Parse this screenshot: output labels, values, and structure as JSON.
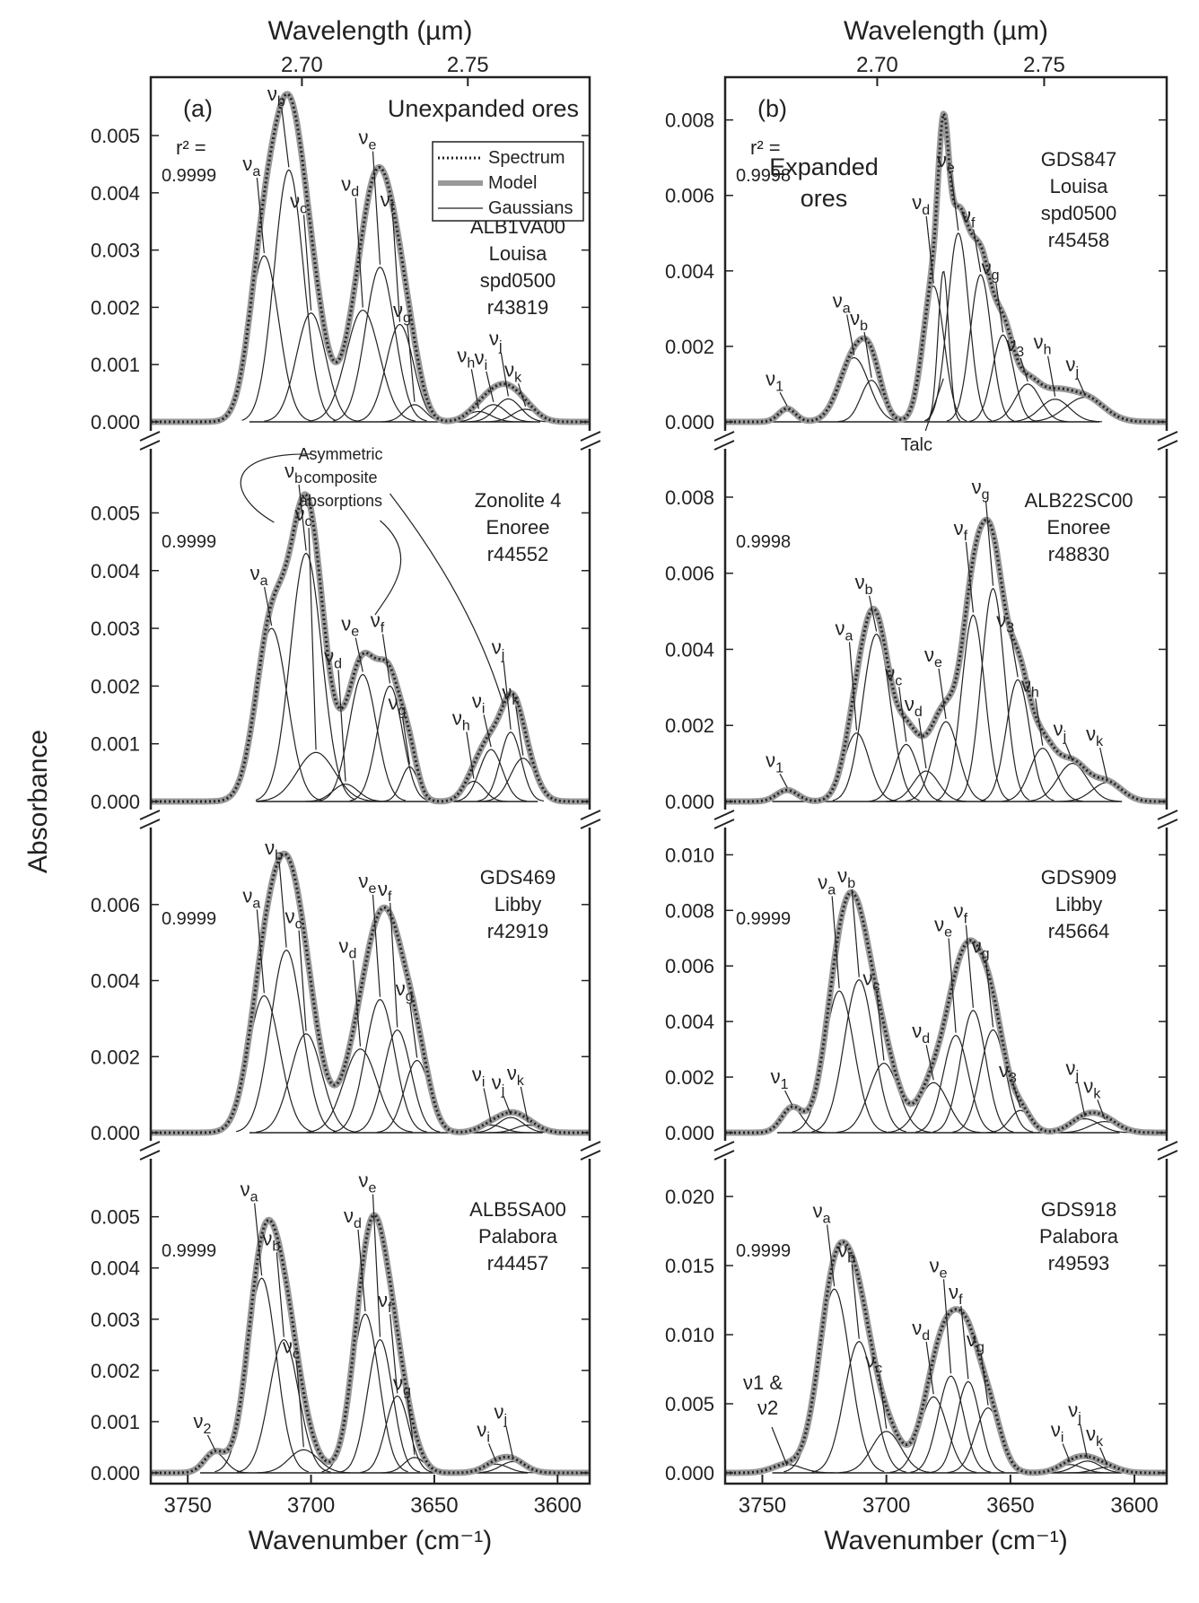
{
  "figure": {
    "top_label": "Wavelength (µm)",
    "x_label": "Wavenumber (cm⁻¹)",
    "y_label": "Absorbance",
    "wavelength_ticks": [
      "2.70",
      "2.75"
    ],
    "wavelength_tick_values_cm": [
      3703.7,
      3636.4
    ],
    "x_ticks": [
      "3750",
      "3700",
      "3650",
      "3600"
    ],
    "legend": [
      "Spectrum",
      "Model",
      "Gaussians"
    ]
  },
  "chart_data": [
    {
      "type": "line",
      "panel": "a",
      "panel_label": "(a)",
      "heading": "Unexpanded ores",
      "sample": [
        "ALB1VA00",
        "Louisa",
        "spd0500",
        "r43819"
      ],
      "r2_label": "r² =",
      "r2": "0.9999",
      "xlim": [
        3765,
        3587
      ],
      "ylim": [
        0,
        0.0058
      ],
      "yticks": [
        "0.000",
        "0.001",
        "0.002",
        "0.003",
        "0.004",
        "0.005"
      ],
      "ytick_values": [
        0,
        0.001,
        0.002,
        0.003,
        0.004,
        0.005
      ],
      "gaussians": [
        {
          "name": "νa",
          "center": 3719,
          "amp": 0.0029,
          "fwhm": 14
        },
        {
          "name": "νb",
          "center": 3709,
          "amp": 0.0044,
          "fwhm": 14
        },
        {
          "name": "νc",
          "center": 3700,
          "amp": 0.0019,
          "fwhm": 14
        },
        {
          "name": "νd",
          "center": 3679,
          "amp": 0.00195,
          "fwhm": 16
        },
        {
          "name": "νe",
          "center": 3672,
          "amp": 0.0027,
          "fwhm": 14
        },
        {
          "name": "νf",
          "center": 3664,
          "amp": 0.0017,
          "fwhm": 13
        },
        {
          "name": "νg",
          "center": 3658,
          "amp": 0.0003,
          "fwhm": 10
        },
        {
          "name": "νh",
          "center": 3632,
          "amp": 0.00018,
          "fwhm": 12
        },
        {
          "name": "νi",
          "center": 3626,
          "amp": 0.0003,
          "fwhm": 12
        },
        {
          "name": "νj",
          "center": 3620,
          "amp": 0.0004,
          "fwhm": 12
        },
        {
          "name": "νk",
          "center": 3613,
          "amp": 0.00022,
          "fwhm": 12
        }
      ]
    },
    {
      "type": "line",
      "panel": "a",
      "panel_label": "",
      "heading": "",
      "sample": [
        "Zonolite 4",
        "Enoree",
        "r44552"
      ],
      "r2_label": "",
      "r2": "0.9999",
      "annotation": "Asymmetric composite absorptions",
      "xlim": [
        3765,
        3587
      ],
      "ylim": [
        0,
        0.0058
      ],
      "yticks": [
        "0.000",
        "0.001",
        "0.002",
        "0.003",
        "0.004",
        "0.005"
      ],
      "ytick_values": [
        0,
        0.001,
        0.002,
        0.003,
        0.004,
        0.005
      ],
      "gaussians": [
        {
          "name": "νa",
          "center": 3716,
          "amp": 0.003,
          "fwhm": 15
        },
        {
          "name": "νb",
          "center": 3702,
          "amp": 0.0043,
          "fwhm": 15
        },
        {
          "name": "νc",
          "center": 3698,
          "amp": 0.00085,
          "fwhm": 18
        },
        {
          "name": "νd",
          "center": 3686,
          "amp": 0.0003,
          "fwhm": 12
        },
        {
          "name": "νe",
          "center": 3679,
          "amp": 0.0022,
          "fwhm": 13
        },
        {
          "name": "νf",
          "center": 3668,
          "amp": 0.002,
          "fwhm": 12
        },
        {
          "name": "νg",
          "center": 3660,
          "amp": 0.0006,
          "fwhm": 8
        },
        {
          "name": "νh",
          "center": 3634,
          "amp": 0.00035,
          "fwhm": 10
        },
        {
          "name": "νi",
          "center": 3627,
          "amp": 0.0009,
          "fwhm": 11
        },
        {
          "name": "νj",
          "center": 3619,
          "amp": 0.0012,
          "fwhm": 10
        },
        {
          "name": "νk",
          "center": 3614,
          "amp": 0.00075,
          "fwhm": 12
        }
      ]
    },
    {
      "type": "line",
      "panel": "a",
      "panel_label": "",
      "heading": "",
      "sample": [
        "GDS469",
        "Libby",
        "r42919"
      ],
      "r2_label": "",
      "r2": "0.9999",
      "xlim": [
        3765,
        3587
      ],
      "ylim": [
        0,
        0.0076
      ],
      "yticks": [
        "0.000",
        "0.002",
        "0.004",
        "0.006"
      ],
      "ytick_values": [
        0,
        0.002,
        0.004,
        0.006
      ],
      "gaussians": [
        {
          "name": "νa",
          "center": 3719,
          "amp": 0.0036,
          "fwhm": 15
        },
        {
          "name": "νb",
          "center": 3710,
          "amp": 0.0048,
          "fwhm": 15
        },
        {
          "name": "νc",
          "center": 3702,
          "amp": 0.0026,
          "fwhm": 15
        },
        {
          "name": "νd",
          "center": 3680,
          "amp": 0.0022,
          "fwhm": 16
        },
        {
          "name": "νe",
          "center": 3672,
          "amp": 0.0035,
          "fwhm": 14
        },
        {
          "name": "νf",
          "center": 3665,
          "amp": 0.0027,
          "fwhm": 13
        },
        {
          "name": "νg",
          "center": 3657,
          "amp": 0.0019,
          "fwhm": 12
        },
        {
          "name": "νi",
          "center": 3627,
          "amp": 0.0002,
          "fwhm": 12
        },
        {
          "name": "νj",
          "center": 3619,
          "amp": 0.0004,
          "fwhm": 12
        },
        {
          "name": "νk",
          "center": 3612,
          "amp": 0.0002,
          "fwhm": 12
        }
      ]
    },
    {
      "type": "line",
      "panel": "a",
      "panel_label": "",
      "heading": "",
      "sample": [
        "ALB5SA00",
        "Palabora",
        "r44457"
      ],
      "r2_label": "",
      "r2": "0.9999",
      "xlim": [
        3765,
        3587
      ],
      "ylim": [
        0,
        0.0058
      ],
      "yticks": [
        "0.000",
        "0.001",
        "0.002",
        "0.003",
        "0.004",
        "0.005"
      ],
      "ytick_values": [
        0,
        0.001,
        0.002,
        0.003,
        0.004,
        0.005
      ],
      "gaussians": [
        {
          "name": "ν2",
          "center": 3739,
          "amp": 0.0004,
          "fwhm": 10
        },
        {
          "name": "νa",
          "center": 3720,
          "amp": 0.0038,
          "fwhm": 14
        },
        {
          "name": "νb",
          "center": 3711,
          "amp": 0.0026,
          "fwhm": 14
        },
        {
          "name": "νc",
          "center": 3703,
          "amp": 0.00045,
          "fwhm": 14
        },
        {
          "name": "νd",
          "center": 3678,
          "amp": 0.0031,
          "fwhm": 13
        },
        {
          "name": "νe",
          "center": 3672,
          "amp": 0.0026,
          "fwhm": 12
        },
        {
          "name": "νf",
          "center": 3665,
          "amp": 0.0015,
          "fwhm": 11
        },
        {
          "name": "νg",
          "center": 3658,
          "amp": 0.0003,
          "fwhm": 10
        },
        {
          "name": "νi",
          "center": 3625,
          "amp": 0.00017,
          "fwhm": 12
        },
        {
          "name": "νj",
          "center": 3618,
          "amp": 0.00022,
          "fwhm": 12
        }
      ]
    },
    {
      "type": "line",
      "panel": "b",
      "panel_label": "(b)",
      "heading": "Expanded ores",
      "sample": [
        "GDS847",
        "Louisa",
        "spd0500",
        "r45458"
      ],
      "r2_label": "r² =",
      "r2": "0.9998",
      "annotation": "Talc",
      "xlim": [
        3765,
        3587
      ],
      "ylim": [
        0,
        0.0088
      ],
      "yticks": [
        "0.000",
        "0.002",
        "0.004",
        "0.006",
        "0.008"
      ],
      "ytick_values": [
        0,
        0.002,
        0.004,
        0.006,
        0.008
      ],
      "gaussians": [
        {
          "name": "ν1",
          "center": 3740,
          "amp": 0.00035,
          "fwhm": 8
        },
        {
          "name": "νa",
          "center": 3713,
          "amp": 0.0017,
          "fwhm": 14
        },
        {
          "name": "νb",
          "center": 3706,
          "amp": 0.0011,
          "fwhm": 10
        },
        {
          "name": "νd",
          "center": 3681,
          "amp": 0.0036,
          "fwhm": 10
        },
        {
          "name": "talc",
          "center": 3677,
          "amp": 0.004,
          "fwhm": 5
        },
        {
          "name": "νe",
          "center": 3671,
          "amp": 0.005,
          "fwhm": 10
        },
        {
          "name": "νf",
          "center": 3662,
          "amp": 0.0039,
          "fwhm": 10
        },
        {
          "name": "νg",
          "center": 3653,
          "amp": 0.0023,
          "fwhm": 10
        },
        {
          "name": "ν3",
          "center": 3643,
          "amp": 0.001,
          "fwhm": 12
        },
        {
          "name": "νh",
          "center": 3632,
          "amp": 0.0006,
          "fwhm": 14
        },
        {
          "name": "νj",
          "center": 3620,
          "amp": 0.00065,
          "fwhm": 18
        }
      ]
    },
    {
      "type": "line",
      "panel": "b",
      "panel_label": "",
      "heading": "",
      "sample": [
        "ALB22SC00",
        "Enoree",
        "r48830"
      ],
      "r2_label": "",
      "r2": "0.9998",
      "xlim": [
        3765,
        3587
      ],
      "ylim": [
        0,
        0.0088
      ],
      "yticks": [
        "0.000",
        "0.002",
        "0.004",
        "0.006",
        "0.008"
      ],
      "ytick_values": [
        0,
        0.002,
        0.004,
        0.006,
        0.008
      ],
      "gaussians": [
        {
          "name": "ν1",
          "center": 3740,
          "amp": 0.0003,
          "fwhm": 10
        },
        {
          "name": "νa",
          "center": 3712,
          "amp": 0.0018,
          "fwhm": 12
        },
        {
          "name": "νb",
          "center": 3704,
          "amp": 0.0044,
          "fwhm": 13
        },
        {
          "name": "νc",
          "center": 3692,
          "amp": 0.0015,
          "fwhm": 11
        },
        {
          "name": "νd",
          "center": 3684,
          "amp": 0.0008,
          "fwhm": 12
        },
        {
          "name": "νe",
          "center": 3676,
          "amp": 0.0021,
          "fwhm": 12
        },
        {
          "name": "νf",
          "center": 3665,
          "amp": 0.0049,
          "fwhm": 11
        },
        {
          "name": "νg",
          "center": 3657,
          "amp": 0.0056,
          "fwhm": 11
        },
        {
          "name": "ν3",
          "center": 3647,
          "amp": 0.0032,
          "fwhm": 11
        },
        {
          "name": "νh",
          "center": 3637,
          "amp": 0.0014,
          "fwhm": 12
        },
        {
          "name": "νj",
          "center": 3625,
          "amp": 0.001,
          "fwhm": 14
        },
        {
          "name": "νk",
          "center": 3611,
          "amp": 0.0005,
          "fwhm": 14
        }
      ]
    },
    {
      "type": "line",
      "panel": "b",
      "panel_label": "",
      "heading": "",
      "sample": [
        "GDS909",
        "Libby",
        "r45664"
      ],
      "r2_label": "",
      "r2": "0.9999",
      "xlim": [
        3765,
        3587
      ],
      "ylim": [
        0,
        0.0104
      ],
      "yticks": [
        "0.000",
        "0.002",
        "0.004",
        "0.006",
        "0.008",
        "0.010"
      ],
      "ytick_values": [
        0,
        0.002,
        0.004,
        0.006,
        0.008,
        0.01
      ],
      "gaussians": [
        {
          "name": "ν1",
          "center": 3738,
          "amp": 0.0009,
          "fwhm": 10
        },
        {
          "name": "νa",
          "center": 3719,
          "amp": 0.0051,
          "fwhm": 14
        },
        {
          "name": "νb",
          "center": 3711,
          "amp": 0.0055,
          "fwhm": 14
        },
        {
          "name": "νc",
          "center": 3701,
          "amp": 0.0025,
          "fwhm": 14
        },
        {
          "name": "νd",
          "center": 3681,
          "amp": 0.0018,
          "fwhm": 14
        },
        {
          "name": "νe",
          "center": 3672,
          "amp": 0.0035,
          "fwhm": 12
        },
        {
          "name": "νf",
          "center": 3665,
          "amp": 0.0044,
          "fwhm": 12
        },
        {
          "name": "νg",
          "center": 3657,
          "amp": 0.0037,
          "fwhm": 12
        },
        {
          "name": "ν3",
          "center": 3646,
          "amp": 0.0008,
          "fwhm": 10
        },
        {
          "name": "νj",
          "center": 3620,
          "amp": 0.0005,
          "fwhm": 14
        },
        {
          "name": "νk",
          "center": 3612,
          "amp": 0.0004,
          "fwhm": 14
        }
      ]
    },
    {
      "type": "line",
      "panel": "b",
      "panel_label": "",
      "heading": "",
      "sample": [
        "GDS918",
        "Palabora",
        "r49593"
      ],
      "r2_label": "",
      "r2": "0.9999",
      "annotation": [
        "ν1 &",
        "ν2"
      ],
      "xlim": [
        3765,
        3587
      ],
      "ylim": [
        0,
        0.0215
      ],
      "yticks": [
        "0.000",
        "0.005",
        "0.010",
        "0.015",
        "0.020"
      ],
      "ytick_values": [
        0,
        0.005,
        0.01,
        0.015,
        0.02
      ],
      "gaussians": [
        {
          "name": "ν1 & ν2",
          "center": 3740,
          "amp": 0.0006,
          "fwhm": 14
        },
        {
          "name": "νa",
          "center": 3721,
          "amp": 0.0133,
          "fwhm": 15
        },
        {
          "name": "νb",
          "center": 3711,
          "amp": 0.0095,
          "fwhm": 14
        },
        {
          "name": "νc",
          "center": 3700,
          "amp": 0.003,
          "fwhm": 14
        },
        {
          "name": "νd",
          "center": 3681,
          "amp": 0.0055,
          "fwhm": 13
        },
        {
          "name": "νe",
          "center": 3674,
          "amp": 0.007,
          "fwhm": 12
        },
        {
          "name": "νf",
          "center": 3667,
          "amp": 0.0066,
          "fwhm": 11
        },
        {
          "name": "νg",
          "center": 3659,
          "amp": 0.0047,
          "fwhm": 12
        },
        {
          "name": "νi",
          "center": 3626,
          "amp": 0.0006,
          "fwhm": 12
        },
        {
          "name": "νj",
          "center": 3619,
          "amp": 0.00085,
          "fwhm": 12
        },
        {
          "name": "νk",
          "center": 3611,
          "amp": 0.0004,
          "fwhm": 12
        }
      ]
    }
  ]
}
